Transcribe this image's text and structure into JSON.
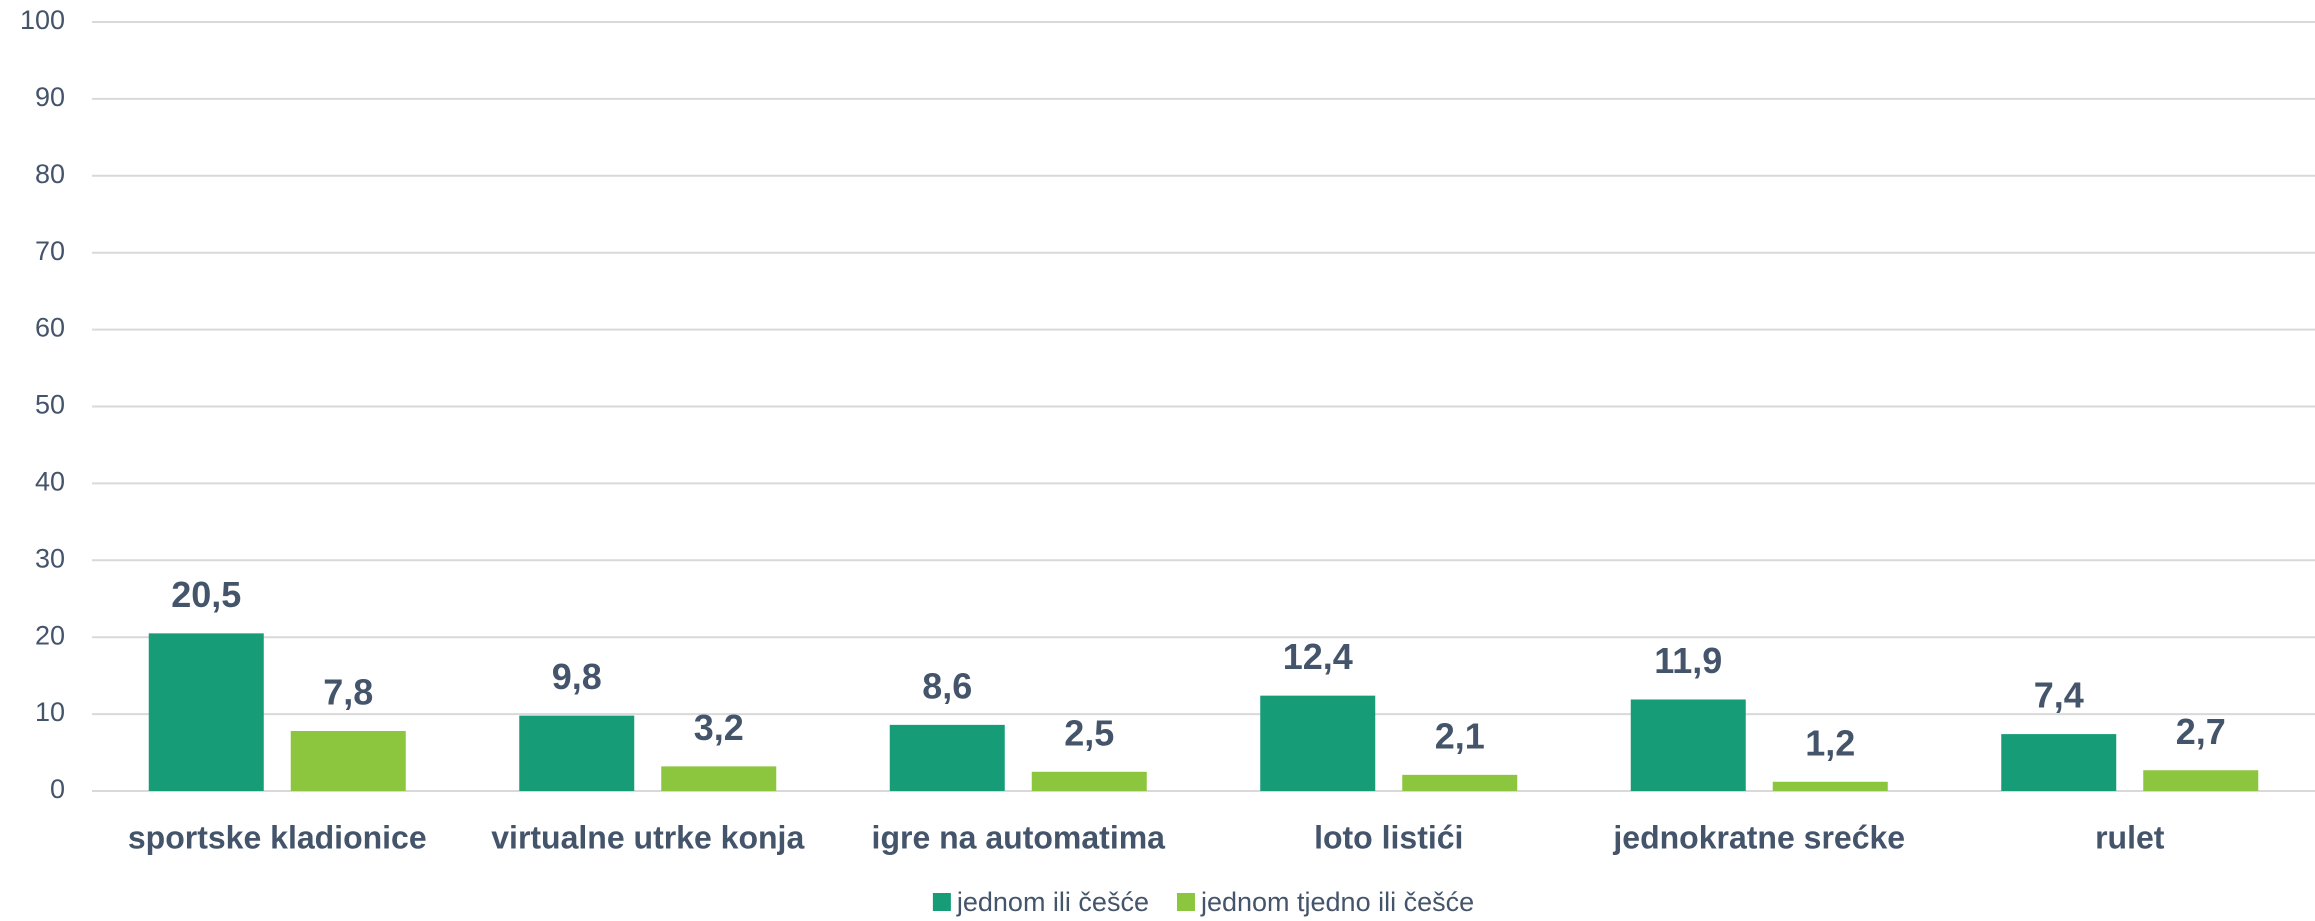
{
  "chart_data": {
    "type": "bar",
    "categories": [
      "sportske kladionice",
      "virtualne utrke konja",
      "igre na automatima",
      "loto listići",
      "jednokratne srećke",
      "rulet"
    ],
    "series": [
      {
        "name": "jednom ili češće",
        "color": "#179c78",
        "values": [
          20.5,
          9.8,
          8.6,
          12.4,
          11.9,
          7.4
        ],
        "value_labels": [
          "20,5",
          "9,8",
          "8,6",
          "12,4",
          "11,9",
          "7,4"
        ]
      },
      {
        "name": "jednom tjedno ili češće",
        "color": "#8cc63f",
        "values": [
          7.8,
          3.2,
          2.5,
          2.1,
          1.2,
          2.7
        ],
        "value_labels": [
          "7,8",
          "3,2",
          "2,5",
          "2,1",
          "1,2",
          "2,7"
        ]
      }
    ],
    "ylim": [
      0,
      100
    ],
    "yticks": [
      0,
      10,
      20,
      30,
      40,
      50,
      60,
      70,
      80,
      90,
      100
    ],
    "grid": true,
    "legend": "bottom"
  }
}
